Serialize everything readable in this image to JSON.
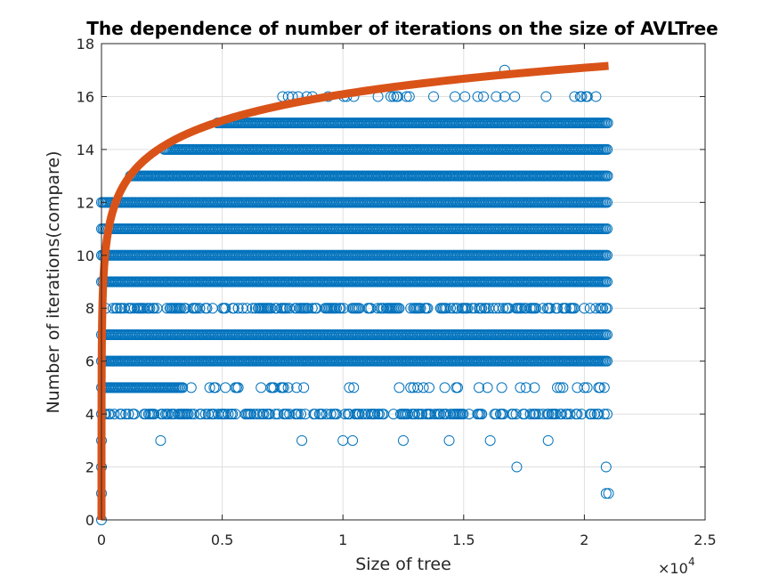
{
  "chart_data": {
    "type": "scatter",
    "title": "The dependence of number of iterations on the size of AVLTree",
    "xlabel": "Size of tree",
    "ylabel": "Number of iterations(compare)",
    "x_exponent_label": "×10",
    "x_exponent_power": "4",
    "xlim": [
      0,
      25000
    ],
    "ylim": [
      0,
      18
    ],
    "x_tick_values": [
      0,
      5000,
      10000,
      15000,
      20000,
      25000
    ],
    "x_tick_labels": [
      "0",
      "0.5",
      "1",
      "1.5",
      "2",
      "2.5"
    ],
    "y_tick_values": [
      0,
      2,
      4,
      6,
      8,
      10,
      12,
      14,
      16,
      18
    ],
    "y_tick_labels": [
      "0",
      "2",
      "4",
      "6",
      "8",
      "10",
      "12",
      "14",
      "16",
      "18"
    ],
    "grid": true,
    "scatter_color": "#0072BD",
    "curve_color": "#D95319",
    "scatter_bands": [
      {
        "y": 4,
        "x_min": 0,
        "x_max": 21000,
        "density": "medium"
      },
      {
        "y": 5,
        "x_min": 0,
        "x_max": 21000,
        "density": "sparse",
        "dense_until": 3400
      },
      {
        "y": 6,
        "x_min": 0,
        "x_max": 21000,
        "density": "dense"
      },
      {
        "y": 7,
        "x_min": 0,
        "x_max": 21000,
        "density": "dense"
      },
      {
        "y": 8,
        "x_min": 0,
        "x_max": 21000,
        "density": "medium"
      },
      {
        "y": 9,
        "x_min": 0,
        "x_max": 21000,
        "density": "dense"
      },
      {
        "y": 10,
        "x_min": 0,
        "x_max": 21000,
        "density": "dense"
      },
      {
        "y": 11,
        "x_min": 0,
        "x_max": 21000,
        "density": "dense"
      },
      {
        "y": 12,
        "x_min": 0,
        "x_max": 21000,
        "density": "dense"
      },
      {
        "y": 13,
        "x_min": 1200,
        "x_max": 21000,
        "density": "dense"
      },
      {
        "y": 14,
        "x_min": 2600,
        "x_max": 21000,
        "density": "dense"
      },
      {
        "y": 15,
        "x_min": 4800,
        "x_max": 21000,
        "density": "dense"
      },
      {
        "y": 16,
        "x_min": 7500,
        "x_max": 21000,
        "density": "sparse"
      }
    ],
    "scatter_points": [
      {
        "x": 0,
        "y": 0
      },
      {
        "x": 0,
        "y": 1
      },
      {
        "x": 0,
        "y": 2
      },
      {
        "x": 0,
        "y": 3
      },
      {
        "x": 2450,
        "y": 3
      },
      {
        "x": 8300,
        "y": 3
      },
      {
        "x": 10000,
        "y": 3
      },
      {
        "x": 10400,
        "y": 3
      },
      {
        "x": 12500,
        "y": 3
      },
      {
        "x": 14400,
        "y": 3
      },
      {
        "x": 16100,
        "y": 3
      },
      {
        "x": 18500,
        "y": 3
      },
      {
        "x": 17200,
        "y": 2
      },
      {
        "x": 20900,
        "y": 2
      },
      {
        "x": 20900,
        "y": 1
      },
      {
        "x": 21000,
        "y": 1
      },
      {
        "x": 16700,
        "y": 17
      }
    ],
    "curve": {
      "label": "",
      "formula": "log2(x) + 2.8",
      "x_min": 1,
      "x_max": 21000
    }
  }
}
